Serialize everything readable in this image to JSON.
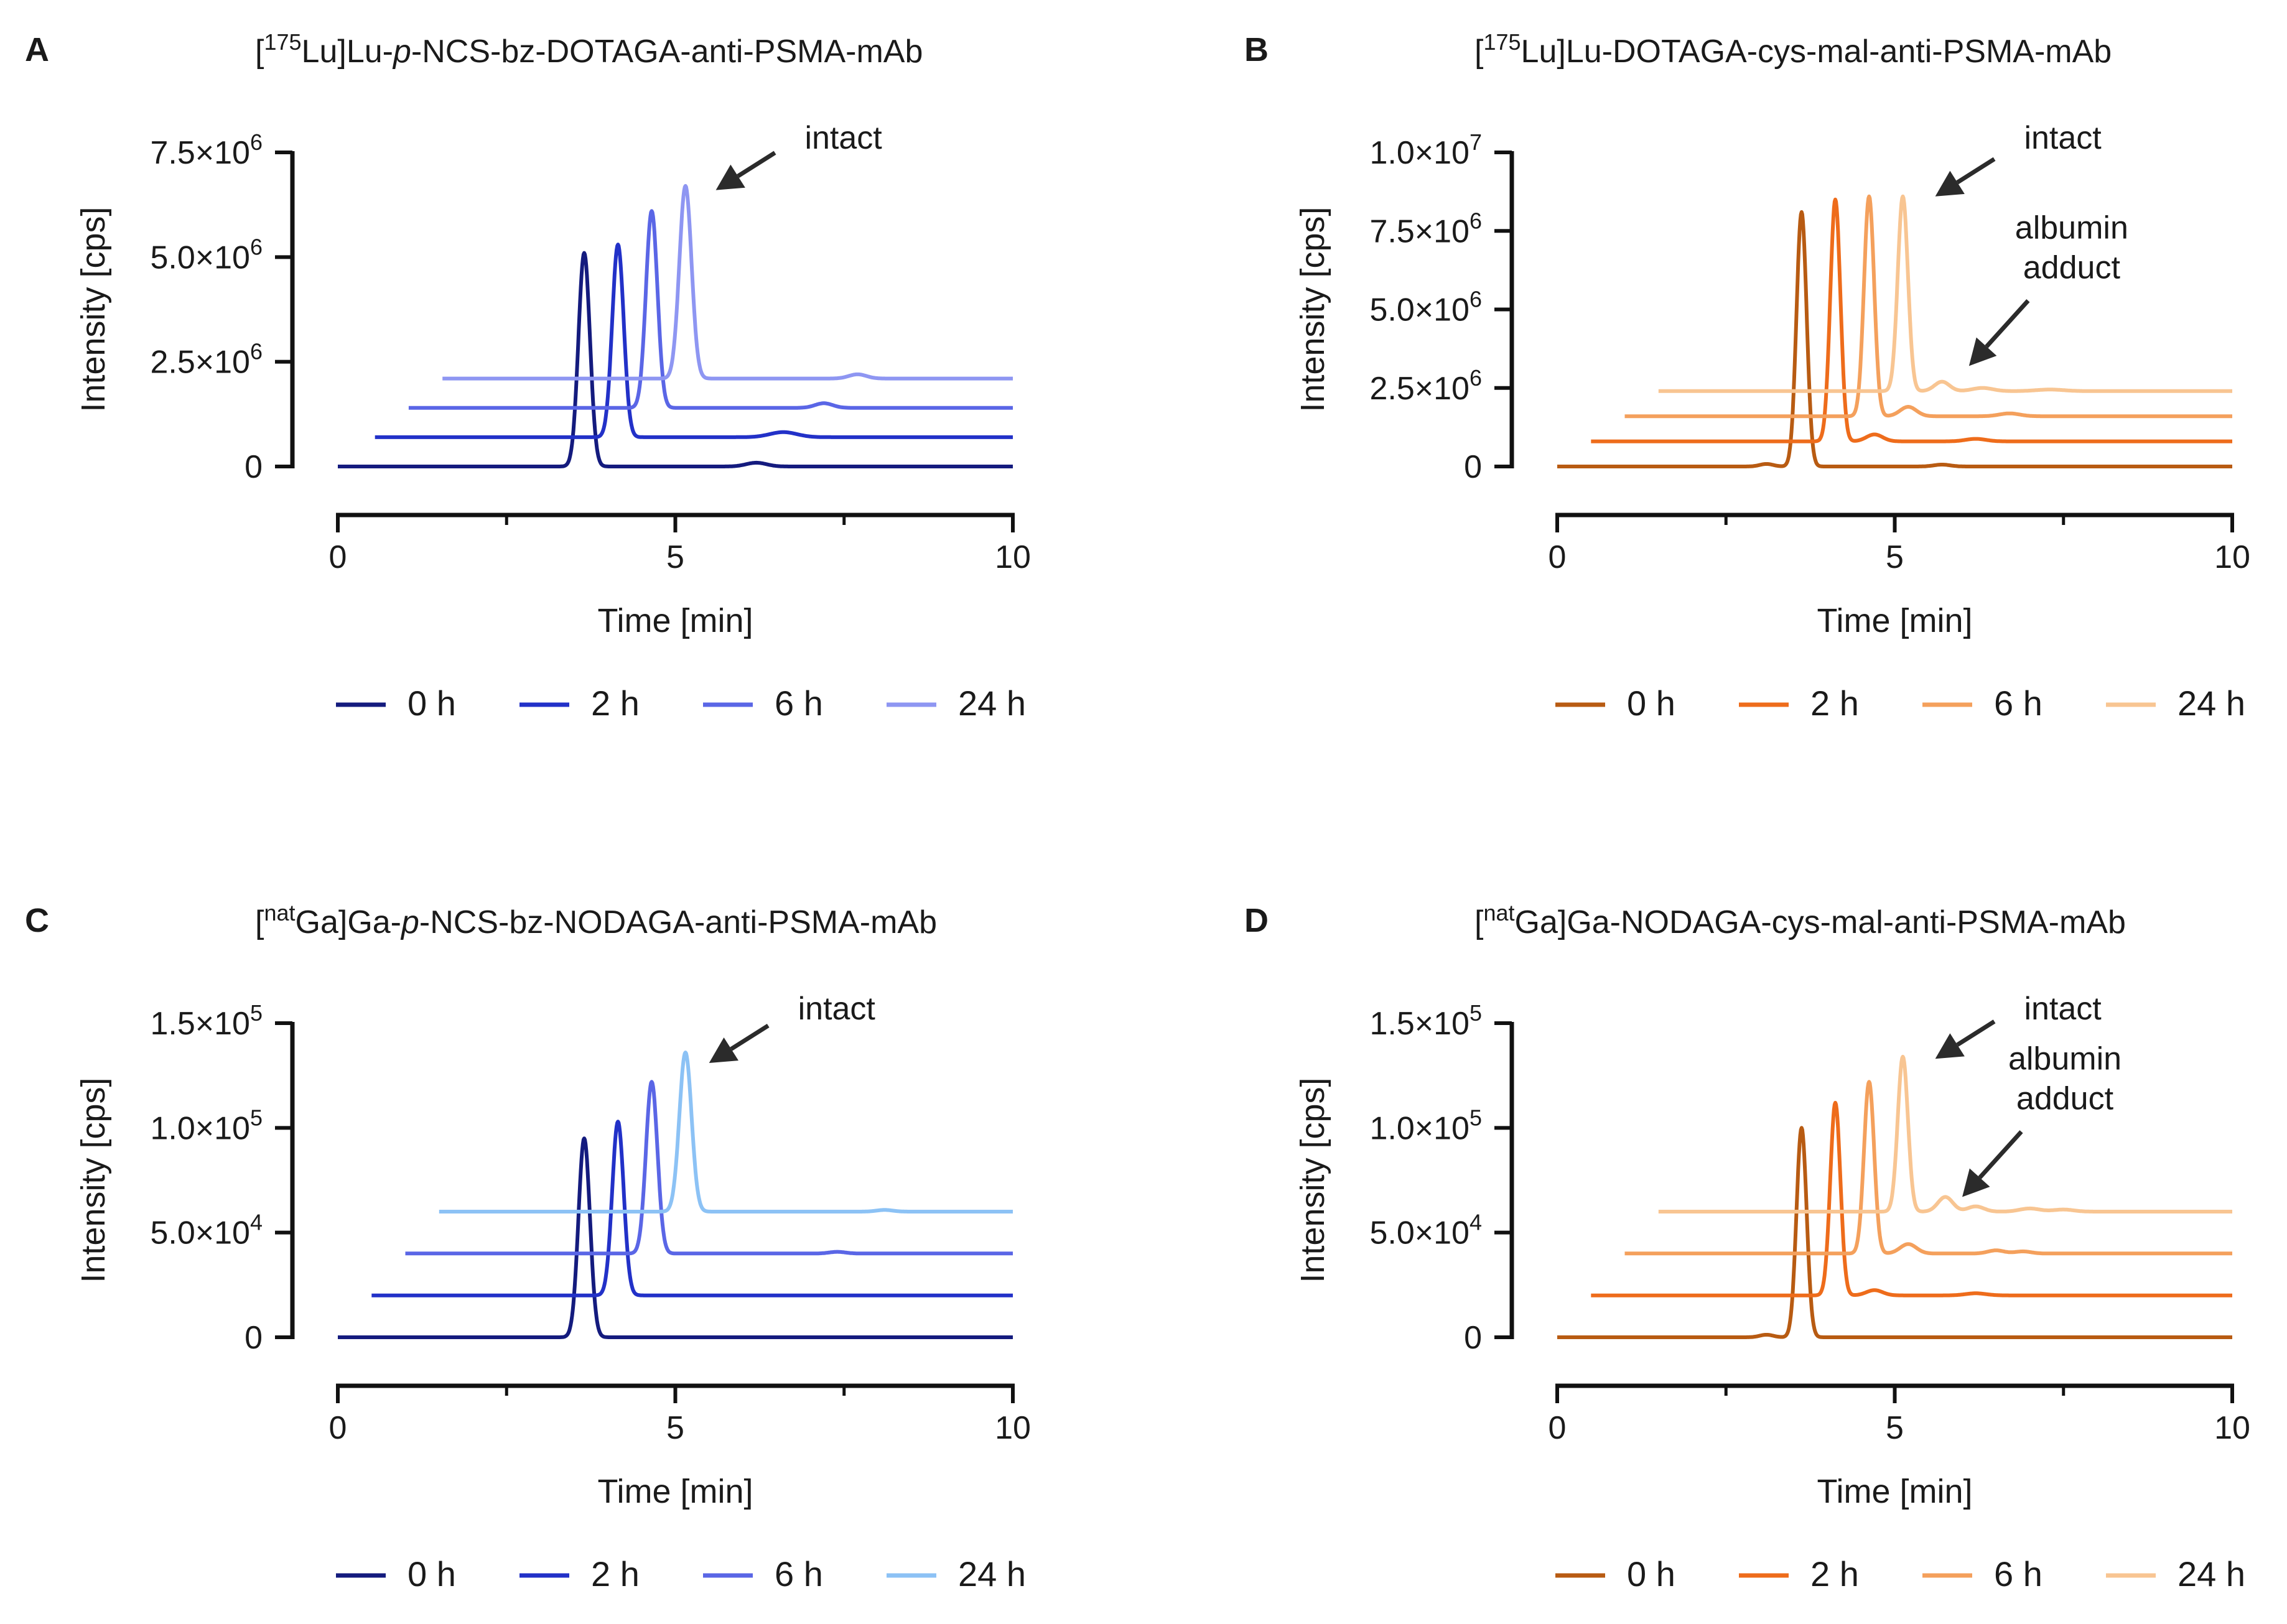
{
  "figure": {
    "panels": [
      {
        "letter": "A",
        "title_prefix": "[",
        "title_sup": "175",
        "title_iso": "Lu]Lu-",
        "title_italic": "p",
        "title_rest": "-NCS-bz-DOTAGA-anti-PSMA-mAb",
        "y_ticks": [
          {
            "v": 0,
            "label": "0"
          },
          {
            "v": 2500000,
            "label": "2.5×10",
            "exp": "6"
          },
          {
            "v": 5000000,
            "label": "5.0×10",
            "exp": "6"
          },
          {
            "v": 7500000,
            "label": "7.5×10",
            "exp": "6"
          }
        ],
        "annotations": [
          {
            "text": "intact",
            "lines": [
              "intact"
            ],
            "target_x": 5.6,
            "target_y": 6600000
          }
        ]
      },
      {
        "letter": "B",
        "title_prefix": "[",
        "title_sup": "175",
        "title_iso": "Lu]Lu-",
        "title_italic": "",
        "title_rest": "DOTAGA-cys-mal-anti-PSMA-mAb",
        "y_ticks": [
          {
            "v": 0,
            "label": "0"
          },
          {
            "v": 2500000,
            "label": "2.5×10",
            "exp": "6"
          },
          {
            "v": 5000000,
            "label": "5.0×10",
            "exp": "6"
          },
          {
            "v": 7500000,
            "label": "7.5×10",
            "exp": "6"
          },
          {
            "v": 10000000,
            "label": "1.0×10",
            "exp": "7"
          }
        ],
        "annotations": [
          {
            "text": "intact",
            "lines": [
              "intact"
            ],
            "target_x": 5.6,
            "target_y": 8600000
          },
          {
            "text": "albumin adduct",
            "lines": [
              "albumin",
              "adduct"
            ],
            "target_x": 6.1,
            "target_y": 3200000
          }
        ]
      },
      {
        "letter": "C",
        "title_prefix": "[",
        "title_sup": "nat",
        "title_iso": "Ga]Ga-",
        "title_italic": "p",
        "title_rest": "-NCS-bz-NODAGA-anti-PSMA-mAb",
        "y_ticks": [
          {
            "v": 0,
            "label": "0"
          },
          {
            "v": 50000,
            "label": "5.0×10",
            "exp": "4"
          },
          {
            "v": 100000,
            "label": "1.0×10",
            "exp": "5"
          },
          {
            "v": 150000,
            "label": "1.5×10",
            "exp": "5"
          }
        ],
        "annotations": [
          {
            "text": "intact",
            "lines": [
              "intact"
            ],
            "target_x": 5.5,
            "target_y": 131000
          }
        ]
      },
      {
        "letter": "D",
        "title_prefix": "[",
        "title_sup": "nat",
        "title_iso": "Ga]Ga-",
        "title_italic": "",
        "title_rest": "NODAGA-cys-mal-anti-PSMA-mAb",
        "y_ticks": [
          {
            "v": 0,
            "label": "0"
          },
          {
            "v": 50000,
            "label": "5.0×10",
            "exp": "4"
          },
          {
            "v": 100000,
            "label": "1.0×10",
            "exp": "5"
          },
          {
            "v": 150000,
            "label": "1.5×10",
            "exp": "5"
          }
        ],
        "annotations": [
          {
            "text": "intact",
            "lines": [
              "intact"
            ],
            "target_x": 5.6,
            "target_y": 133000
          },
          {
            "text": "albumin adduct",
            "lines": [
              "albumin",
              "adduct"
            ],
            "target_x": 6.0,
            "target_y": 67000
          }
        ]
      }
    ],
    "x_axis_label": "Time [min]",
    "y_axis_label": "Intensity [cps]",
    "x_ticks": [
      {
        "v": 0,
        "label": "0"
      },
      {
        "v": 5,
        "label": "5"
      },
      {
        "v": 10,
        "label": "10"
      }
    ],
    "x_minor_ticks": [
      2.5,
      7.5
    ],
    "legend_labels": [
      "0 h",
      "2 h",
      "6 h",
      "24 h"
    ],
    "colors": {
      "blue_lu": [
        "#141b7e",
        "#2231c8",
        "#5a66e6",
        "#8e96f2"
      ],
      "blue_ga": [
        "#141b7e",
        "#2231c8",
        "#5a66e6",
        "#8cc2f5"
      ],
      "orange": [
        "#b85b12",
        "#ee6c1b",
        "#f4a05c",
        "#f8c592"
      ],
      "axis": "#111111",
      "arrow": "#2b2b2b"
    }
  },
  "chart_data": [
    {
      "type": "line",
      "title": "[175Lu]Lu-p-NCS-bz-DOTAGA-anti-PSMA-mAb",
      "xlabel": "Time [min]",
      "ylabel": "Intensity [cps]",
      "xlim": [
        0,
        10
      ],
      "ylim": [
        0,
        7500000
      ],
      "note": "traces are offset in time and intensity (stacked display)",
      "series": [
        {
          "name": "0 h",
          "x_start": 0.0,
          "x_end": 10.0,
          "baseline": 0,
          "peak_x": 3.65,
          "peak_value": 5100000,
          "peak_width": 0.085,
          "bumps": [
            {
              "x": 6.2,
              "value": 90000,
              "w": 0.15
            }
          ]
        },
        {
          "name": "2 h",
          "x_start": 0.55,
          "x_end": 10.0,
          "baseline": 700000,
          "peak_x": 4.15,
          "peak_value": 5300000,
          "peak_width": 0.085,
          "bumps": [
            {
              "x": 6.6,
              "value": 120000,
              "w": 0.2
            }
          ]
        },
        {
          "name": "6 h",
          "x_start": 1.05,
          "x_end": 10.0,
          "baseline": 1400000,
          "peak_x": 4.65,
          "peak_value": 6100000,
          "peak_width": 0.085,
          "bumps": [
            {
              "x": 7.2,
              "value": 110000,
              "w": 0.13
            }
          ]
        },
        {
          "name": "24 h",
          "x_start": 1.55,
          "x_end": 10.0,
          "baseline": 2100000,
          "peak_x": 5.15,
          "peak_value": 6700000,
          "peak_width": 0.09,
          "bumps": [
            {
              "x": 7.7,
              "value": 100000,
              "w": 0.13
            }
          ]
        }
      ],
      "annotations": [
        "intact"
      ]
    },
    {
      "type": "line",
      "title": "[175Lu]Lu-DOTAGA-cys-mal-anti-PSMA-mAb",
      "xlabel": "Time [min]",
      "ylabel": "Intensity [cps]",
      "xlim": [
        0,
        10
      ],
      "ylim": [
        0,
        10000000
      ],
      "series": [
        {
          "name": "0 h",
          "x_start": 0.0,
          "x_end": 10.0,
          "baseline": 0,
          "peak_x": 3.62,
          "peak_value": 8100000,
          "peak_width": 0.075,
          "bumps": [
            {
              "x": 3.1,
              "value": 80000,
              "w": 0.1
            },
            {
              "x": 5.7,
              "value": 60000,
              "w": 0.12
            }
          ]
        },
        {
          "name": "2 h",
          "x_start": 0.5,
          "x_end": 10.0,
          "baseline": 800000,
          "peak_x": 4.12,
          "peak_value": 8500000,
          "peak_width": 0.075,
          "bumps": [
            {
              "x": 4.7,
              "value": 220000,
              "w": 0.12
            },
            {
              "x": 6.2,
              "value": 80000,
              "w": 0.15
            }
          ]
        },
        {
          "name": "6 h",
          "x_start": 1.0,
          "x_end": 10.0,
          "baseline": 1600000,
          "peak_x": 4.62,
          "peak_value": 8600000,
          "peak_width": 0.075,
          "bumps": [
            {
              "x": 5.2,
              "value": 300000,
              "w": 0.12
            },
            {
              "x": 6.7,
              "value": 90000,
              "w": 0.15
            }
          ]
        },
        {
          "name": "24 h",
          "x_start": 1.5,
          "x_end": 10.0,
          "baseline": 2400000,
          "peak_x": 5.12,
          "peak_value": 8600000,
          "peak_width": 0.075,
          "bumps": [
            {
              "x": 5.7,
              "value": 2700000,
              "w": 0.11
            },
            {
              "x": 6.3,
              "value": 2500000,
              "w": 0.15
            },
            {
              "x": 7.3,
              "value": 2450000,
              "w": 0.2
            }
          ]
        }
      ],
      "annotations": [
        "intact",
        "albumin adduct"
      ]
    },
    {
      "type": "line",
      "title": "[natGa]Ga-p-NCS-bz-NODAGA-anti-PSMA-mAb",
      "xlabel": "Time [min]",
      "ylabel": "Intensity [cps]",
      "xlim": [
        0,
        10
      ],
      "ylim": [
        0,
        150000
      ],
      "series": [
        {
          "name": "0 h",
          "x_start": 0.0,
          "x_end": 10.0,
          "baseline": 0,
          "peak_x": 3.65,
          "peak_value": 95000,
          "peak_width": 0.085,
          "bumps": []
        },
        {
          "name": "2 h",
          "x_start": 0.5,
          "x_end": 10.0,
          "baseline": 20000,
          "peak_x": 4.15,
          "peak_value": 103000,
          "peak_width": 0.085,
          "bumps": []
        },
        {
          "name": "6 h",
          "x_start": 1.0,
          "x_end": 10.0,
          "baseline": 40000,
          "peak_x": 4.65,
          "peak_value": 122000,
          "peak_width": 0.085,
          "bumps": [
            {
              "x": 7.4,
              "value": 800,
              "w": 0.12
            }
          ]
        },
        {
          "name": "24 h",
          "x_start": 1.5,
          "x_end": 10.0,
          "baseline": 60000,
          "peak_x": 5.15,
          "peak_value": 136000,
          "peak_width": 0.09,
          "bumps": [
            {
              "x": 8.1,
              "value": 800,
              "w": 0.12
            }
          ]
        }
      ],
      "annotations": [
        "intact"
      ]
    },
    {
      "type": "line",
      "title": "[natGa]Ga-NODAGA-cys-mal-anti-PSMA-mAb",
      "xlabel": "Time [min]",
      "ylabel": "Intensity [cps]",
      "xlim": [
        0,
        10
      ],
      "ylim": [
        0,
        150000
      ],
      "series": [
        {
          "name": "0 h",
          "x_start": 0.0,
          "x_end": 10.0,
          "baseline": 0,
          "peak_x": 3.62,
          "peak_value": 100000,
          "peak_width": 0.075,
          "bumps": [
            {
              "x": 3.1,
              "value": 1200,
              "w": 0.1
            }
          ]
        },
        {
          "name": "2 h",
          "x_start": 0.5,
          "x_end": 10.0,
          "baseline": 20000,
          "peak_x": 4.12,
          "peak_value": 112000,
          "peak_width": 0.075,
          "bumps": [
            {
              "x": 4.7,
              "value": 22500,
              "w": 0.12
            },
            {
              "x": 6.2,
              "value": 21000,
              "w": 0.15
            }
          ]
        },
        {
          "name": "6 h",
          "x_start": 1.0,
          "x_end": 10.0,
          "baseline": 40000,
          "peak_x": 4.62,
          "peak_value": 122000,
          "peak_width": 0.075,
          "bumps": [
            {
              "x": 5.2,
              "value": 44500,
              "w": 0.12
            },
            {
              "x": 6.5,
              "value": 41500,
              "w": 0.12
            },
            {
              "x": 6.9,
              "value": 41000,
              "w": 0.12
            }
          ]
        },
        {
          "name": "24 h",
          "x_start": 1.5,
          "x_end": 10.0,
          "baseline": 60000,
          "peak_x": 5.12,
          "peak_value": 134000,
          "peak_width": 0.075,
          "bumps": [
            {
              "x": 5.75,
              "value": 67000,
              "w": 0.11
            },
            {
              "x": 6.2,
              "value": 62500,
              "w": 0.12
            },
            {
              "x": 7.0,
              "value": 61500,
              "w": 0.15
            },
            {
              "x": 7.5,
              "value": 61000,
              "w": 0.15
            }
          ]
        }
      ],
      "annotations": [
        "intact",
        "albumin adduct"
      ]
    }
  ]
}
